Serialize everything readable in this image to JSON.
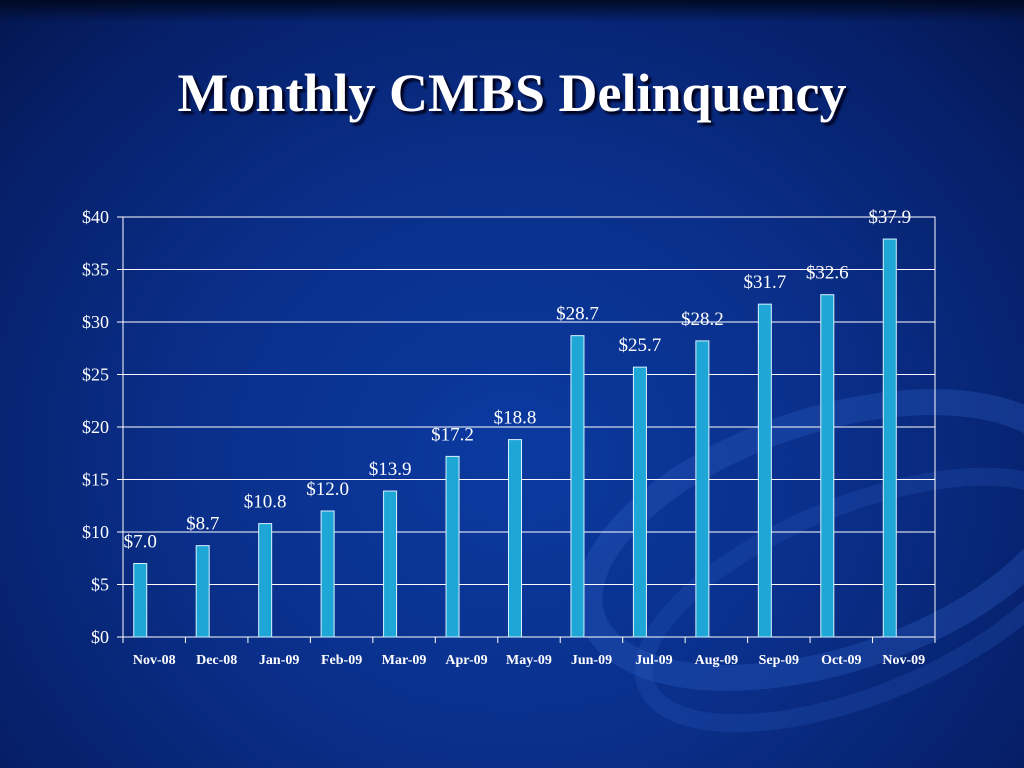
{
  "slide": {
    "title": "Monthly CMBS Delinquency"
  },
  "chart_data": {
    "type": "bar",
    "title": "Monthly CMBS Delinquency",
    "xlabel": "",
    "ylabel": "",
    "categories": [
      "Nov-08",
      "Dec-08",
      "Jan-09",
      "Feb-09",
      "Mar-09",
      "Apr-09",
      "May-09",
      "Jun-09",
      "Jul-09",
      "Aug-09",
      "Sep-09",
      "Oct-09",
      "Nov-09"
    ],
    "values": [
      7.0,
      8.7,
      10.8,
      12.0,
      13.9,
      17.2,
      18.8,
      28.7,
      25.7,
      28.2,
      31.7,
      32.6,
      37.9
    ],
    "data_labels": [
      "$7.0",
      "$8.7",
      "$10.8",
      "$12.0",
      "$13.9",
      "$17.2",
      "$18.8",
      "$28.7",
      "$25.7",
      "$28.2",
      "$31.7",
      "$32.6",
      "$37.9"
    ],
    "y_ticks": [
      0,
      5,
      10,
      15,
      20,
      25,
      30,
      35,
      40
    ],
    "y_tick_labels": [
      "$0",
      "$5",
      "$10",
      "$15",
      "$20",
      "$25",
      "$30",
      "$35",
      "$40"
    ],
    "ylim": [
      0,
      40
    ],
    "grid": true,
    "legend": "none",
    "colors": {
      "bar_fill": "#1ea6d6",
      "bar_edge": "#d8f2ff",
      "gridline": "#ffffff",
      "text": "#ffffff"
    }
  }
}
